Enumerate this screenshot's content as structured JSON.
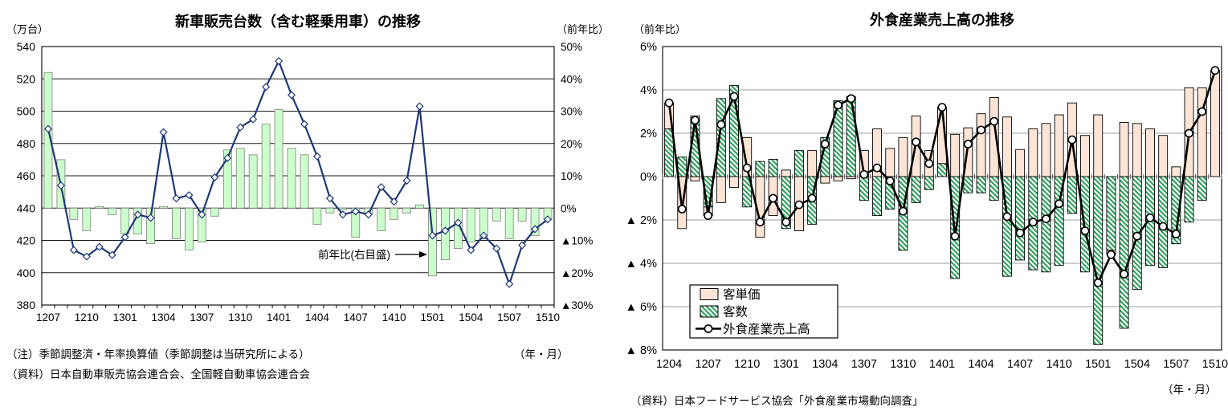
{
  "chart_data": [
    {
      "id": "new-car-sales",
      "type": "bar+line",
      "title": "新車販売台数（含む軽乗用車）の推移",
      "left_axis_unit": "（万台）",
      "right_axis_unit": "（前年比）",
      "x_axis_unit": "（年・月）",
      "annotation": "前年比(右目盛)",
      "note": "（注）季節調整済・年率換算値（季節調整は当研究所による）",
      "source": "（資料）日本自動車販売協会連合会、全国軽自動車協会連合会",
      "left_ylim": [
        380,
        540
      ],
      "right_ylim": [
        -30,
        50
      ],
      "left_axis_ticks": [
        540,
        520,
        500,
        480,
        460,
        440,
        420,
        400,
        380
      ],
      "right_axis_tick_labels": [
        "50%",
        "40%",
        "30%",
        "20%",
        "10%",
        "0%",
        "▲10%",
        "▲20%",
        "▲30%"
      ],
      "x_tick_labels": [
        "1207",
        "1210",
        "1301",
        "1304",
        "1307",
        "1310",
        "1401",
        "1404",
        "1407",
        "1410",
        "1501",
        "1504",
        "1507",
        "1510"
      ],
      "categories": [
        "1207",
        "1208",
        "1209",
        "1210",
        "1211",
        "1212",
        "1301",
        "1302",
        "1303",
        "1304",
        "1305",
        "1306",
        "1307",
        "1308",
        "1309",
        "1310",
        "1311",
        "1312",
        "1401",
        "1402",
        "1403",
        "1404",
        "1405",
        "1406",
        "1407",
        "1408",
        "1409",
        "1410",
        "1411",
        "1412",
        "1501",
        "1502",
        "1503",
        "1504",
        "1505",
        "1506",
        "1507",
        "1508",
        "1509",
        "1510"
      ],
      "bar_series": {
        "name": "新車販売台数",
        "unit": "万台",
        "baseline": 440,
        "color": "#ccffcc",
        "values": [
          524,
          470,
          433,
          426,
          441,
          436,
          424,
          424,
          418,
          441,
          421,
          414,
          419,
          435,
          476,
          477,
          473,
          492,
          501,
          477,
          473,
          430,
          437,
          439,
          422,
          436,
          426,
          433,
          437,
          442,
          398,
          408,
          415,
          419,
          421,
          432,
          421,
          432,
          423,
          433
        ]
      },
      "line_series": {
        "name": "前年比(右目盛)",
        "unit": "%",
        "color": "#1f3875",
        "values": [
          24.5,
          7,
          -13,
          -15,
          -12,
          -14.5,
          -9,
          -2,
          -3,
          23.5,
          3,
          4,
          -2,
          9.5,
          15.5,
          25,
          27.5,
          37.5,
          45.5,
          35,
          26,
          16,
          3,
          -2,
          -1,
          -2,
          6.5,
          2,
          8.5,
          31.5,
          -8.5,
          -7,
          -4.5,
          -13,
          -8.5,
          -12.5,
          -23.5,
          -11.5,
          -6.5,
          -3.5
        ]
      }
    },
    {
      "id": "restaurant-industry-sales",
      "type": "stacked-bar+line",
      "title": "外食産業売上高の推移",
      "left_axis_unit": "（前年比）",
      "x_axis_unit": "（年・月）",
      "source": "（資料）日本フードサービス協会「外食産業市場動向調査」",
      "ylim": [
        -8,
        6
      ],
      "y_tick_labels": [
        "6%",
        "4%",
        "2%",
        "0%",
        "▲ 2%",
        "▲ 4%",
        "▲ 6%",
        "▲ 8%"
      ],
      "y_ticks": [
        6,
        4,
        2,
        0,
        -2,
        -4,
        -6,
        -8
      ],
      "x_tick_labels": [
        "1204",
        "1207",
        "1210",
        "1301",
        "1304",
        "1307",
        "1310",
        "1401",
        "1404",
        "1407",
        "1410",
        "1501",
        "1504",
        "1507",
        "1510"
      ],
      "categories": [
        "1204",
        "1205",
        "1206",
        "1207",
        "1208",
        "1209",
        "1210",
        "1211",
        "1212",
        "1301",
        "1302",
        "1303",
        "1304",
        "1305",
        "1306",
        "1307",
        "1308",
        "1309",
        "1310",
        "1311",
        "1312",
        "1401",
        "1402",
        "1403",
        "1404",
        "1405",
        "1406",
        "1407",
        "1408",
        "1409",
        "1410",
        "1411",
        "1412",
        "1501",
        "1502",
        "1503",
        "1504",
        "1505",
        "1506",
        "1507",
        "1508",
        "1509",
        "1510"
      ],
      "legend": [
        "客単価",
        "客数",
        "外食産業売上高"
      ],
      "series": [
        {
          "name": "客単価",
          "type": "bar",
          "color": "#fce4d6",
          "values": [
            1.2,
            -2.4,
            -0.2,
            -0.4,
            -1.2,
            -0.5,
            1.8,
            -2.8,
            -1.8,
            0.3,
            -2.5,
            1.2,
            -0.3,
            -0.2,
            -0.1,
            1.2,
            2.2,
            1.3,
            1.8,
            2.8,
            1.2,
            2.6,
            1.95,
            2.25,
            2.9,
            3.65,
            2.75,
            1.25,
            2.2,
            2.45,
            2.85,
            3.4,
            1.9,
            2.85,
            -0.2,
            2.5,
            2.45,
            2.2,
            1.9,
            0.45,
            4.1,
            4.1,
            4.9
          ]
        },
        {
          "name": "客数",
          "type": "bar",
          "color": "#2ca05a",
          "values": [
            2.2,
            0.9,
            2.8,
            -1.4,
            3.6,
            4.2,
            -1.4,
            0.7,
            0.8,
            -2.4,
            1.2,
            -2.2,
            1.8,
            3.5,
            3.7,
            -1.1,
            -1.8,
            -1.5,
            -3.4,
            -1.2,
            -0.6,
            0.6,
            -4.7,
            -0.75,
            -0.75,
            -1.1,
            -4.6,
            -3.85,
            -4.3,
            -4.4,
            -4.1,
            -1.7,
            -4.4,
            -7.75,
            -3.4,
            -7.0,
            -5.2,
            -4.1,
            -4.2,
            -3.1,
            -2.1,
            -1.1,
            0.0
          ]
        },
        {
          "name": "外食産業売上高",
          "type": "line",
          "color": "#000000",
          "values": [
            3.4,
            -1.5,
            2.6,
            -1.8,
            2.4,
            3.7,
            0.4,
            -2.1,
            -1.0,
            -2.1,
            -1.3,
            -1.0,
            1.5,
            3.3,
            3.6,
            0.1,
            0.4,
            -0.2,
            -1.6,
            1.6,
            0.6,
            3.2,
            -2.75,
            1.5,
            2.15,
            2.55,
            -1.85,
            -2.6,
            -2.1,
            -1.95,
            -1.25,
            1.7,
            -2.5,
            -4.9,
            -3.6,
            -4.5,
            -2.75,
            -1.9,
            -2.3,
            -2.65,
            2.0,
            3.0,
            4.9
          ]
        }
      ]
    }
  ]
}
